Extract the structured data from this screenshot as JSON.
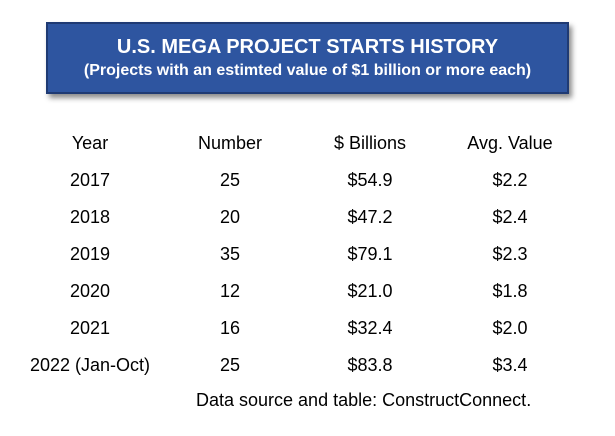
{
  "colors": {
    "title_box_bg": "#2e55a0",
    "title_box_border": "#1f3a73",
    "title_text": "#ffffff"
  },
  "chart_data": {
    "type": "table",
    "title": "U.S. MEGA PROJECT STARTS HISTORY",
    "subtitle": "(Projects with an estimted value of $1 billion or more each)",
    "columns": [
      "Year",
      "Number",
      "$ Billions",
      "Avg. Value"
    ],
    "rows": [
      [
        "2017",
        "25",
        "$54.9",
        "$2.2"
      ],
      [
        "2018",
        "20",
        "$47.2",
        "$2.4"
      ],
      [
        "2019",
        "35",
        "$79.1",
        "$2.3"
      ],
      [
        "2020",
        "12",
        "$21.0",
        "$1.8"
      ],
      [
        "2021",
        "16",
        "$32.4",
        "$2.0"
      ],
      [
        "2022 (Jan-Oct)",
        "25",
        "$83.8",
        "$3.4"
      ]
    ],
    "source": "Data source and table: ConstructConnect."
  }
}
